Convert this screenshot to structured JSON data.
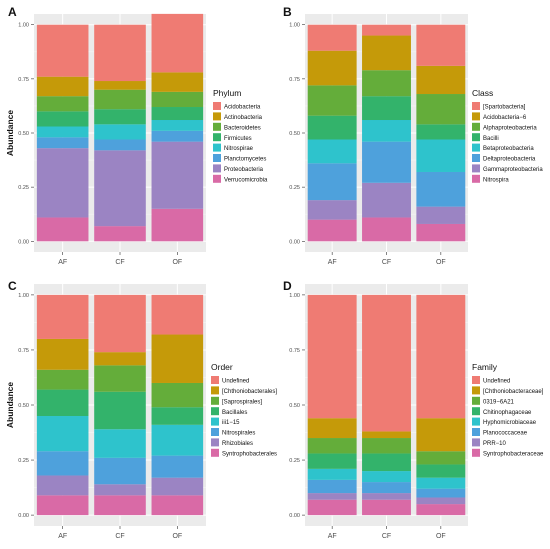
{
  "figure": {
    "panel_letters": [
      "A",
      "B",
      "C",
      "D"
    ]
  },
  "chart_data": [
    {
      "type": "bar",
      "stacked": true,
      "panel": "A",
      "ylabel": "Abundance",
      "xlabel": "",
      "categories": [
        "AF",
        "CF",
        "OF"
      ],
      "yticks": [
        "0.00",
        "0.25",
        "0.50",
        "0.75",
        "1.00"
      ],
      "ylim": [
        0,
        1
      ],
      "grid": true,
      "legend_title": "Phylum",
      "legend_position": "right",
      "series": [
        {
          "name": "Verrucomicrobia",
          "color": "#d96aa6",
          "values": [
            0.11,
            0.07,
            0.15
          ]
        },
        {
          "name": "Proteobacteria",
          "color": "#9b84c3",
          "values": [
            0.32,
            0.35,
            0.31
          ]
        },
        {
          "name": "Planctomycetes",
          "color": "#4ea1dc",
          "values": [
            0.05,
            0.05,
            0.05
          ]
        },
        {
          "name": "Nitrospirae",
          "color": "#2ec3cc",
          "values": [
            0.05,
            0.07,
            0.05
          ]
        },
        {
          "name": "Firmicutes",
          "color": "#33b36b",
          "values": [
            0.07,
            0.07,
            0.06
          ]
        },
        {
          "name": "Bacteroidetes",
          "color": "#64ad3a",
          "values": [
            0.07,
            0.09,
            0.07
          ]
        },
        {
          "name": "Actinobacteria",
          "color": "#c59a09",
          "values": [
            0.09,
            0.04,
            0.09
          ]
        },
        {
          "name": "Acidobacteria",
          "color": "#ef7b73",
          "values": [
            0.24,
            0.26,
            0.27
          ]
        }
      ]
    },
    {
      "type": "bar",
      "stacked": true,
      "panel": "B",
      "ylabel": "",
      "xlabel": "",
      "categories": [
        "AF",
        "CF",
        "OF"
      ],
      "yticks": [
        "0.00",
        "0.25",
        "0.50",
        "0.75",
        "1.00"
      ],
      "ylim": [
        0,
        1
      ],
      "grid": true,
      "legend_title": "Class",
      "legend_position": "right",
      "series": [
        {
          "name": "Nitrospira",
          "color": "#d96aa6",
          "values": [
            0.1,
            0.11,
            0.08
          ]
        },
        {
          "name": "Gammaproteobacteria",
          "color": "#9b84c3",
          "values": [
            0.09,
            0.16,
            0.08
          ]
        },
        {
          "name": "Deltaproteobacteria",
          "color": "#4ea1dc",
          "values": [
            0.17,
            0.19,
            0.16
          ]
        },
        {
          "name": "Betaproteobacteria",
          "color": "#2ec3cc",
          "values": [
            0.11,
            0.1,
            0.15
          ]
        },
        {
          "name": "Bacilli",
          "color": "#33b36b",
          "values": [
            0.11,
            0.11,
            0.07
          ]
        },
        {
          "name": "Alphaproteobacteria",
          "color": "#64ad3a",
          "values": [
            0.14,
            0.12,
            0.14
          ]
        },
        {
          "name": "Acidobacteria−6",
          "color": "#c59a09",
          "values": [
            0.16,
            0.16,
            0.13
          ]
        },
        {
          "name": "[Spartobacteria]",
          "color": "#ef7b73",
          "values": [
            0.12,
            0.05,
            0.19
          ]
        }
      ]
    },
    {
      "type": "bar",
      "stacked": true,
      "panel": "C",
      "ylabel": "Abundance",
      "xlabel": "",
      "categories": [
        "AF",
        "CF",
        "OF"
      ],
      "yticks": [
        "0.00",
        "0.25",
        "0.50",
        "0.75",
        "1.00"
      ],
      "ylim": [
        0,
        1
      ],
      "grid": true,
      "legend_title": "Order",
      "legend_position": "right",
      "series": [
        {
          "name": "Syntrophobacterales",
          "color": "#d96aa6",
          "values": [
            0.09,
            0.09,
            0.09
          ]
        },
        {
          "name": "Rhizobiales",
          "color": "#9b84c3",
          "values": [
            0.09,
            0.05,
            0.08
          ]
        },
        {
          "name": "Nitrospirales",
          "color": "#4ea1dc",
          "values": [
            0.11,
            0.12,
            0.1
          ]
        },
        {
          "name": "iii1−15",
          "color": "#2ec3cc",
          "values": [
            0.16,
            0.13,
            0.14
          ]
        },
        {
          "name": "Bacillales",
          "color": "#33b36b",
          "values": [
            0.12,
            0.17,
            0.08
          ]
        },
        {
          "name": "[Saprospirales]",
          "color": "#64ad3a",
          "values": [
            0.09,
            0.12,
            0.11
          ]
        },
        {
          "name": "[Chthoniobacterales]",
          "color": "#c59a09",
          "values": [
            0.14,
            0.06,
            0.22
          ]
        },
        {
          "name": "Undefined",
          "color": "#ef7b73",
          "values": [
            0.2,
            0.26,
            0.18
          ]
        }
      ]
    },
    {
      "type": "bar",
      "stacked": true,
      "panel": "D",
      "ylabel": "",
      "xlabel": "",
      "categories": [
        "AF",
        "CF",
        "OF"
      ],
      "yticks": [
        "0.00",
        "0.25",
        "0.50",
        "0.75",
        "1.00"
      ],
      "ylim": [
        0,
        1
      ],
      "grid": true,
      "legend_title": "Family",
      "legend_position": "right",
      "series": [
        {
          "name": "Syntrophobacteraceae",
          "color": "#d96aa6",
          "values": [
            0.07,
            0.07,
            0.05
          ]
        },
        {
          "name": "PRR−10",
          "color": "#9b84c3",
          "values": [
            0.03,
            0.03,
            0.03
          ]
        },
        {
          "name": "Planococcaceae",
          "color": "#4ea1dc",
          "values": [
            0.06,
            0.05,
            0.04
          ]
        },
        {
          "name": "Hyphomicrobiaceae",
          "color": "#2ec3cc",
          "values": [
            0.05,
            0.05,
            0.05
          ]
        },
        {
          "name": "Chitinophagaceae",
          "color": "#33b36b",
          "values": [
            0.07,
            0.08,
            0.06
          ]
        },
        {
          "name": "0319−6A21",
          "color": "#64ad3a",
          "values": [
            0.07,
            0.07,
            0.06
          ]
        },
        {
          "name": "[Chthoniobacteraceae]",
          "color": "#c59a09",
          "values": [
            0.09,
            0.03,
            0.15
          ]
        },
        {
          "name": "Undefined",
          "color": "#ef7b73",
          "values": [
            0.56,
            0.62,
            0.56
          ]
        }
      ]
    }
  ]
}
